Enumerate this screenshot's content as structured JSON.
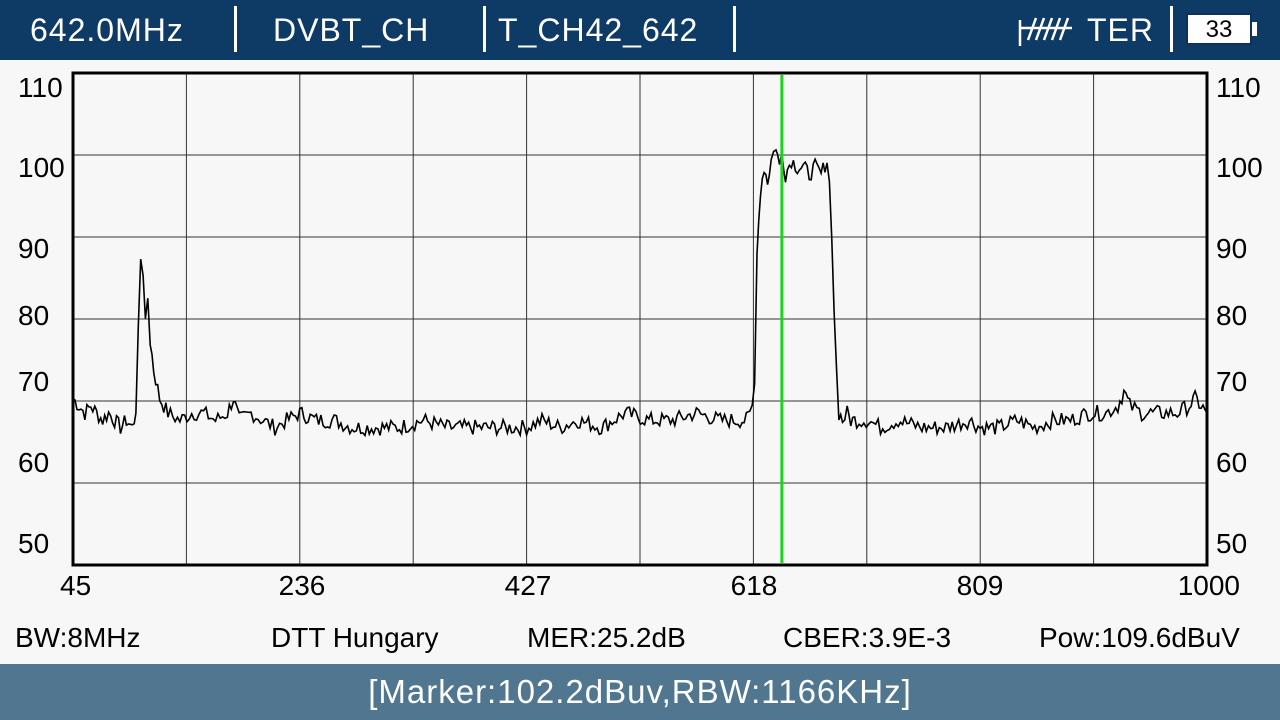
{
  "header": {
    "frequency": "642.0MHz",
    "standard": "DVBT_CH",
    "channel": "T_CH42_642",
    "band": "TER",
    "battery": "33",
    "antenna_icon": "antenna-icon"
  },
  "chart_data": {
    "type": "line",
    "xlim": [
      45,
      1000
    ],
    "ylim": [
      45,
      113
    ],
    "x_ticks": [
      "45",
      "236",
      "427",
      "618",
      "809",
      "1000"
    ],
    "y_ticks": [
      "110",
      "100",
      "90",
      "80",
      "70",
      "60",
      "50"
    ],
    "marker_x": 642,
    "grid": true,
    "series": [
      {
        "x": [
          45,
          50,
          55,
          60,
          65,
          70,
          75,
          80,
          85,
          90,
          95,
          98,
          100,
          102,
          104,
          106,
          108,
          110,
          113,
          118,
          125,
          135,
          145,
          155,
          165,
          175,
          180,
          185,
          195,
          205,
          215,
          225,
          236,
          250,
          265,
          280,
          300,
          320,
          340,
          360,
          380,
          400,
          427,
          440,
          455,
          470,
          490,
          510,
          530,
          550,
          570,
          590,
          605,
          612,
          615,
          617,
          619,
          621,
          624,
          627,
          630,
          633,
          637,
          640,
          642,
          645,
          650,
          655,
          660,
          665,
          670,
          675,
          680,
          682,
          684,
          686,
          688,
          690,
          693,
          697,
          700,
          705,
          715,
          725,
          740,
          760,
          780,
          800,
          809,
          825,
          840,
          855,
          870,
          885,
          900,
          915,
          925,
          930,
          935,
          945,
          960,
          975,
          985,
          990,
          995,
          1000
        ],
        "y": [
          68,
          67,
          66,
          67,
          66,
          65,
          66,
          65,
          64,
          65,
          64,
          66,
          78,
          88,
          85,
          78,
          82,
          76,
          72,
          68,
          66,
          65,
          66,
          66,
          65,
          66,
          68,
          65,
          66,
          65,
          64,
          65,
          66,
          65,
          65,
          64,
          64,
          64,
          65,
          64,
          64,
          64,
          64,
          65,
          64,
          65,
          64,
          66,
          65,
          65,
          66,
          65,
          65,
          65,
          66,
          67,
          70,
          88,
          97,
          100,
          98,
          101,
          103,
          100,
          102,
          99,
          101,
          100,
          100,
          99,
          100,
          99,
          101,
          98,
          90,
          80,
          72,
          66,
          65,
          66,
          65,
          65,
          65,
          64,
          65,
          64,
          64,
          65,
          64,
          64,
          65,
          64,
          65,
          65,
          66,
          66,
          67,
          69,
          67,
          66,
          66,
          66,
          67,
          68,
          67,
          66
        ]
      }
    ]
  },
  "info": {
    "bw": "BW:8MHz",
    "region": "DTT Hungary",
    "mer": "MER:25.2dB",
    "cber": "CBER:3.9E-3",
    "pow": "Pow:109.6dBuV"
  },
  "status": {
    "marker": "[Marker:102.2dBuv,RBW:1166KHz]"
  }
}
